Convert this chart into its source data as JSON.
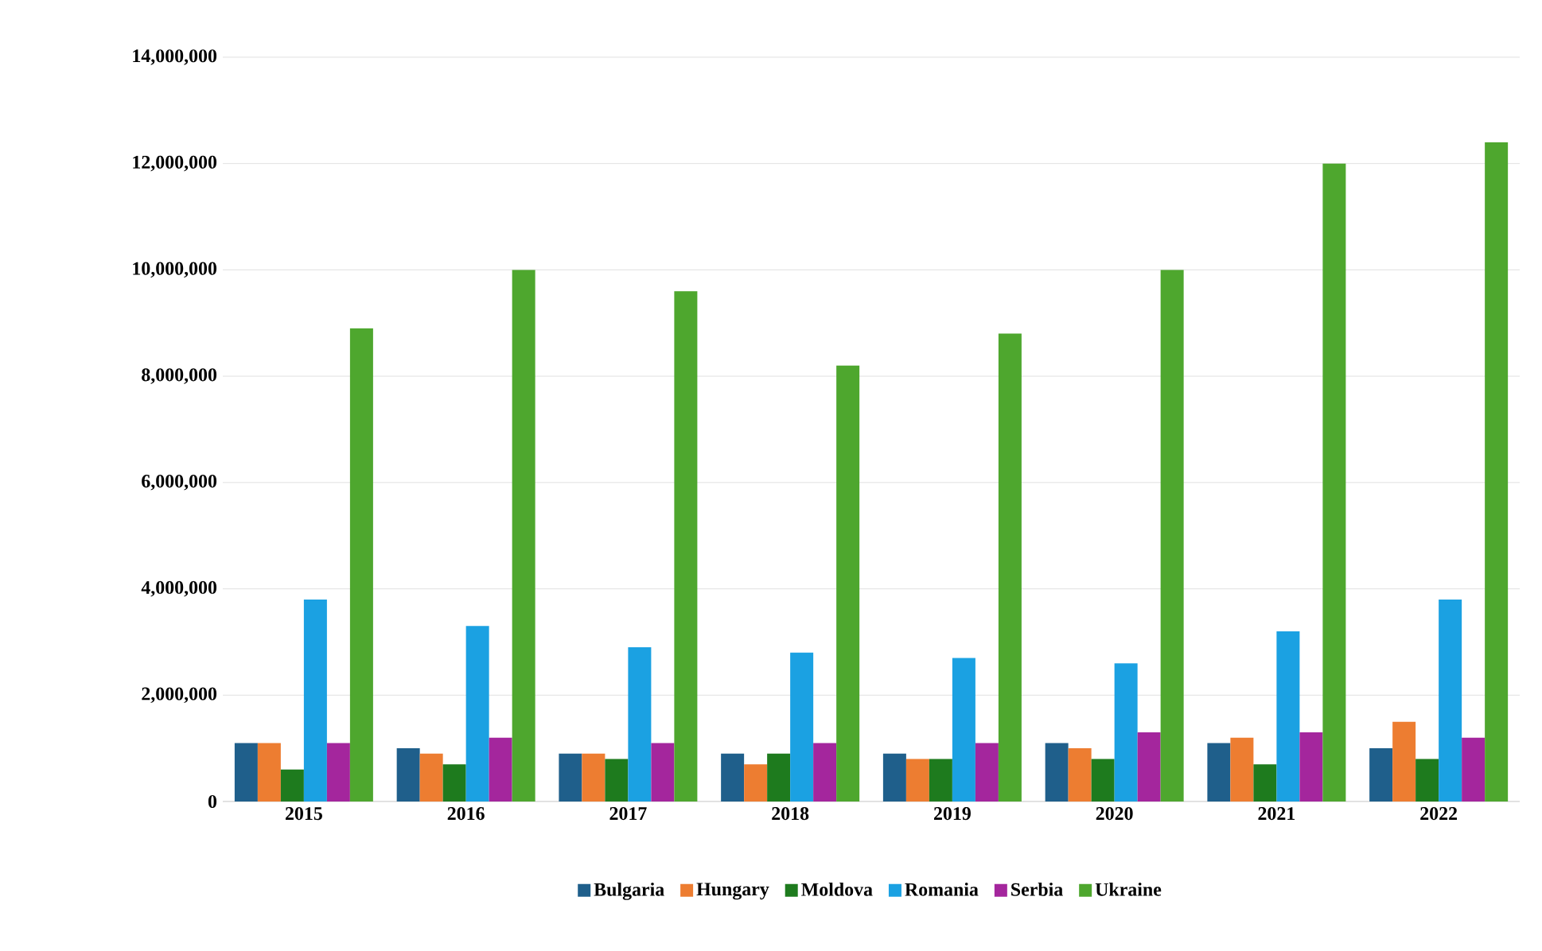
{
  "chart_data": {
    "type": "bar",
    "categories": [
      "2015",
      "2016",
      "2017",
      "2018",
      "2019",
      "2020",
      "2021",
      "2022"
    ],
    "series": [
      {
        "name": "Bulgaria",
        "color": "#1f5f8b",
        "values": [
          1100000,
          1000000,
          900000,
          900000,
          900000,
          1100000,
          1100000,
          1000000
        ]
      },
      {
        "name": "Hungary",
        "color": "#ed7d31",
        "values": [
          1100000,
          900000,
          900000,
          700000,
          800000,
          1000000,
          1200000,
          1500000
        ]
      },
      {
        "name": "Moldova",
        "color": "#1e7b1e",
        "values": [
          600000,
          700000,
          800000,
          900000,
          800000,
          800000,
          700000,
          800000
        ]
      },
      {
        "name": "Romania",
        "color": "#1ba1e2",
        "values": [
          3800000,
          3300000,
          2900000,
          2800000,
          2700000,
          2600000,
          3200000,
          3800000
        ]
      },
      {
        "name": "Serbia",
        "color": "#a4269d",
        "values": [
          1100000,
          1200000,
          1100000,
          1100000,
          1100000,
          1300000,
          1300000,
          1200000
        ]
      },
      {
        "name": "Ukraine",
        "color": "#4ea72e",
        "values": [
          8900000,
          10000000,
          9600000,
          8200000,
          8800000,
          10000000,
          12000000,
          12400000
        ]
      }
    ],
    "ylim": [
      0,
      14000000
    ],
    "yticks": [
      {
        "value": 0,
        "label": "0"
      },
      {
        "value": 2000000,
        "label": "2,000,000"
      },
      {
        "value": 4000000,
        "label": "4,000,000"
      },
      {
        "value": 6000000,
        "label": "6,000,000"
      },
      {
        "value": 8000000,
        "label": "8,000,000"
      },
      {
        "value": 10000000,
        "label": "10,000,000"
      },
      {
        "value": 12000000,
        "label": "12,000,000"
      },
      {
        "value": 14000000,
        "label": "14,000,000"
      }
    ],
    "grid": "y",
    "legend": "bottom"
  }
}
